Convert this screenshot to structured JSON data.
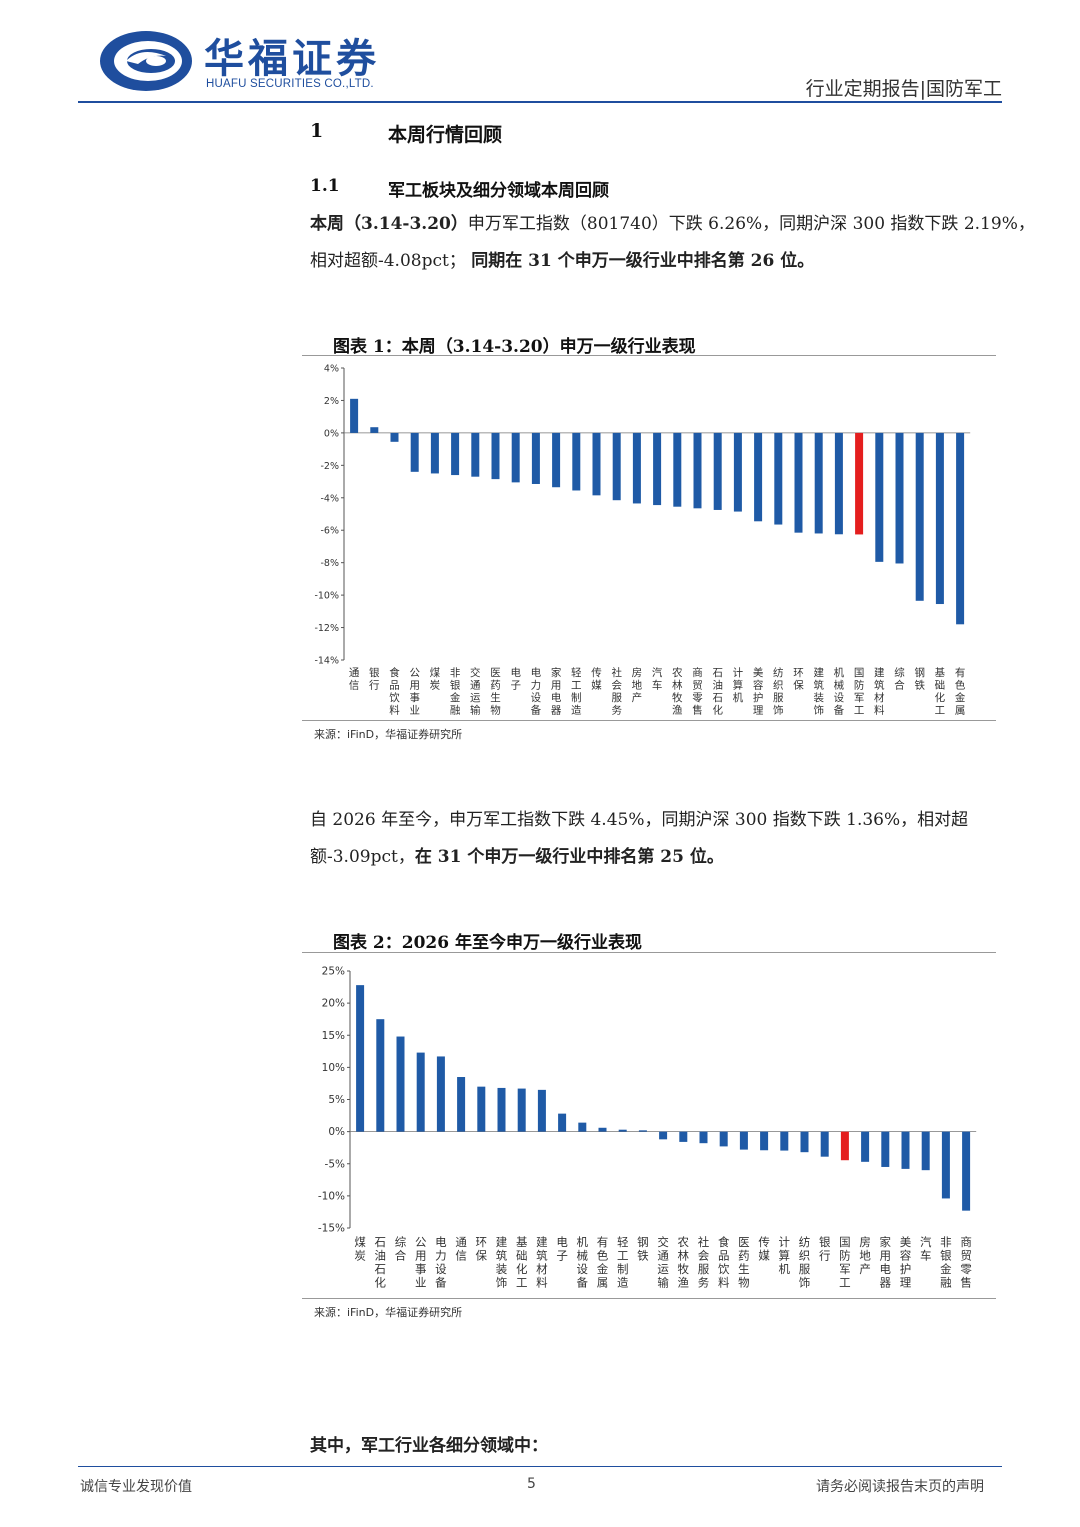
{
  "header": {
    "logo_cn": "华福证券",
    "logo_en": "HUAFU SECURITIES CO.,LTD.",
    "report_type": "行业定期报告|国防军工"
  },
  "section1": {
    "num": "1",
    "title": "本周行情回顾"
  },
  "section11": {
    "num": "1.1",
    "title": "军工板块及细分领域本周回顾"
  },
  "para1": {
    "l1_bold": "本周（3.14-3.20）",
    "l1_text": "申万军工指数（801740）下跌 6.26%，同期沪深 300 指数下跌 2.19%，",
    "l2_text": "相对超额-4.08pct；",
    "l2_bold": "同期在 31 个申万一级行业中排名第 26 位。"
  },
  "chart1_title": "图表 1：本周（3.14-3.20）申万一级行业表现",
  "chart1_source": "来源：iFinD，华福证券研究所",
  "para2": {
    "l1_text": "自 2026 年至今，申万军工指数下跌 4.45%，同期沪深 300 指数下跌 1.36%，相对超",
    "l2_text": "额-3.09pct，",
    "l2_bold": "在 31 个申万一级行业中排名第 25 位。"
  },
  "chart2_title": "图表 2：2026 年至今申万一级行业表现",
  "chart2_source": "来源：iFinD，华福证券研究所",
  "para3": "其中，军工行业各细分领域中：",
  "footer": {
    "left": "诚信专业发现价值",
    "page": "5",
    "right": "请务必阅读报告末页的声明"
  },
  "colors": {
    "bar": "#1f5aa6",
    "highlight": "#e41e1e",
    "brand": "#1f4e9e"
  },
  "chart_data": [
    {
      "type": "bar",
      "title": "图表 1：本周（3.14-3.20）申万一级行业表现",
      "ylim": [
        -14,
        4
      ],
      "yticks": [
        4,
        2,
        0,
        -2,
        -4,
        -6,
        -8,
        -10,
        -12,
        -14
      ],
      "ytick_labels": [
        "4%",
        "2%",
        "0%",
        "-2%",
        "-4%",
        "-6%",
        "-8%",
        "-10%",
        "-12%",
        "-14%"
      ],
      "highlight_category": "国防军工",
      "categories": [
        "通信",
        "银行",
        "食品饮料",
        "公用事业",
        "煤炭",
        "非银金融",
        "交通运输",
        "医药生物",
        "电子",
        "电力设备",
        "家用电器",
        "轻工制造",
        "传媒",
        "社会服务",
        "房地产",
        "汽车",
        "农林牧渔",
        "商贸零售",
        "石油石化",
        "计算机",
        "美容护理",
        "纺织服饰",
        "环保",
        "建筑装饰",
        "机械设备",
        "国防军工",
        "建筑材料",
        "综合",
        "钢铁",
        "基础化工",
        "有色金属"
      ],
      "values": [
        2.1,
        0.35,
        -0.55,
        -2.4,
        -2.5,
        -2.6,
        -2.7,
        -2.85,
        -3.05,
        -3.15,
        -3.35,
        -3.55,
        -3.85,
        -4.15,
        -4.35,
        -4.45,
        -4.55,
        -4.65,
        -4.75,
        -4.85,
        -5.45,
        -5.65,
        -6.15,
        -6.2,
        -6.25,
        -6.26,
        -7.95,
        -8.05,
        -10.35,
        -10.55,
        -11.8
      ]
    },
    {
      "type": "bar",
      "title": "图表 2：2026 年至今申万一级行业表现",
      "ylim": [
        -15,
        25
      ],
      "yticks": [
        25,
        20,
        15,
        10,
        5,
        0,
        -5,
        -10,
        -15
      ],
      "ytick_labels": [
        "25%",
        "20%",
        "15%",
        "10%",
        "5%",
        "0%",
        "-5%",
        "-10%",
        "-15%"
      ],
      "highlight_category": "国防军工",
      "categories": [
        "煤炭",
        "石油石化",
        "综合",
        "公用事业",
        "电力设备",
        "通信",
        "环保",
        "建筑装饰",
        "基础化工",
        "建筑材料",
        "电子",
        "机械设备",
        "有色金属",
        "轻工制造",
        "钢铁",
        "交通运输",
        "农林牧渔",
        "社会服务",
        "食品饮料",
        "医药生物",
        "传媒",
        "计算机",
        "纺织服饰",
        "银行",
        "国防军工",
        "房地产",
        "家用电器",
        "美容护理",
        "汽车",
        "非银金融",
        "商贸零售"
      ],
      "values": [
        22.8,
        17.5,
        14.8,
        12.3,
        11.7,
        8.5,
        7.0,
        6.8,
        6.7,
        6.5,
        2.8,
        1.4,
        0.6,
        0.3,
        0.2,
        -1.2,
        -1.6,
        -1.8,
        -2.3,
        -2.8,
        -2.9,
        -2.95,
        -3.2,
        -3.9,
        -4.45,
        -4.7,
        -5.5,
        -5.8,
        -6.0,
        -10.4,
        -12.3
      ]
    }
  ]
}
